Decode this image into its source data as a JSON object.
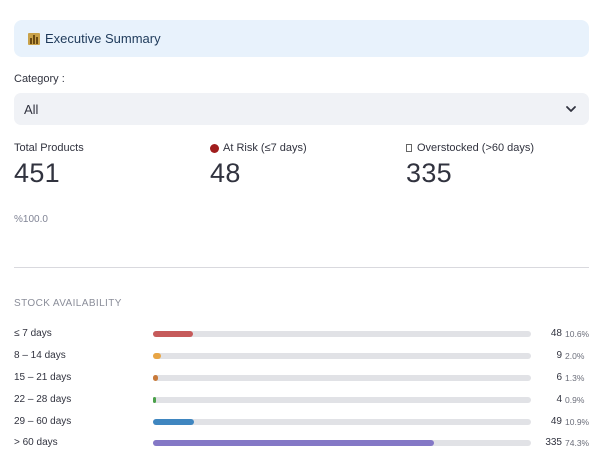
{
  "banner": {
    "title": "Executive Summary",
    "icon": "bar-chart-icon"
  },
  "filter": {
    "label": "Category :",
    "selected": "All",
    "icon": "chevron-down-icon"
  },
  "metrics": [
    {
      "label": "Total Products",
      "value": "451",
      "delta": "%100.0"
    },
    {
      "label": "At Risk (≤7 days)",
      "value": "48",
      "icon": "red-circle-icon",
      "icon_color": "#a01d1d"
    },
    {
      "label": "Overstocked (>60 days)",
      "value": "335",
      "icon": "box-icon"
    }
  ],
  "stock": {
    "title": "STOCK AVAILABILITY",
    "rows": [
      {
        "label": "≤ 7 days",
        "count": "48",
        "pct": "10.6%",
        "fraction": 0.106,
        "color": "#c65a5a"
      },
      {
        "label": "8 – 14 days",
        "count": "9",
        "pct": "2.0%",
        "fraction": 0.02,
        "color": "#e8a545"
      },
      {
        "label": "15 – 21 days",
        "count": "6",
        "pct": "1.3%",
        "fraction": 0.013,
        "color": "#c87a3a"
      },
      {
        "label": "22 – 28 days",
        "count": "4",
        "pct": "0.9%",
        "fraction": 0.009,
        "color": "#4aa04a"
      },
      {
        "label": "29 – 60 days",
        "count": "49",
        "pct": "10.9%",
        "fraction": 0.109,
        "color": "#3f86c0"
      },
      {
        "label": "> 60 days",
        "count": "335",
        "pct": "74.3%",
        "fraction": 0.743,
        "color": "#8478c6"
      }
    ]
  }
}
